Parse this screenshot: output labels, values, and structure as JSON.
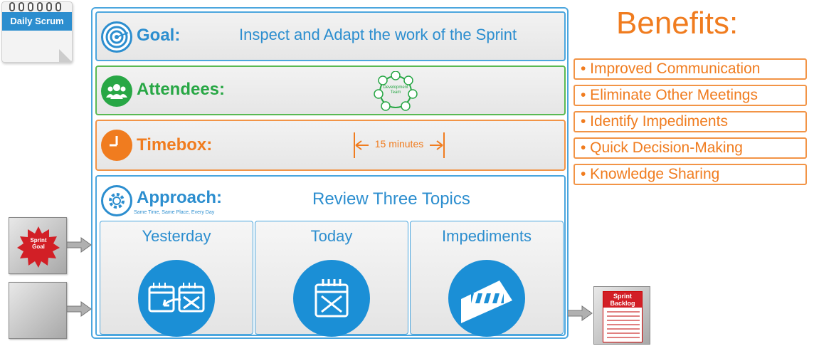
{
  "calendar": {
    "label": "Daily Scrum"
  },
  "goal": {
    "label": "Goal:",
    "text": "Inspect and Adapt the work of the Sprint"
  },
  "attendees": {
    "label": "Attendees:",
    "team_label_line1": "Development",
    "team_label_line2": "Team"
  },
  "timebox": {
    "label": "Timebox:",
    "duration": "15 minutes"
  },
  "approach": {
    "label": "Approach:",
    "subtitle": "Same Time, Same Place, Every Day",
    "topic_heading": "Review Three Topics",
    "topics": [
      {
        "title": "Yesterday",
        "icon": "calendar-back-icon"
      },
      {
        "title": "Today",
        "icon": "calendar-x-icon"
      },
      {
        "title": "Impediments",
        "icon": "barrier-icon"
      }
    ]
  },
  "benefits": {
    "title": "Benefits:",
    "items": [
      "• Improved Communication",
      "• Eliminate Other Meetings",
      "• Identify Impediments",
      "• Quick Decision-Making",
      "• Knowledge Sharing"
    ]
  },
  "inputs": {
    "sprint_goal_line1": "Sprint",
    "sprint_goal_line2": "Goal"
  },
  "output": {
    "backlog_line1": "Sprint",
    "backlog_line2": "Backlog"
  },
  "colors": {
    "blue": "#2c8ecf",
    "green": "#28a745",
    "orange": "#f07c1f",
    "red": "#d21f26"
  }
}
